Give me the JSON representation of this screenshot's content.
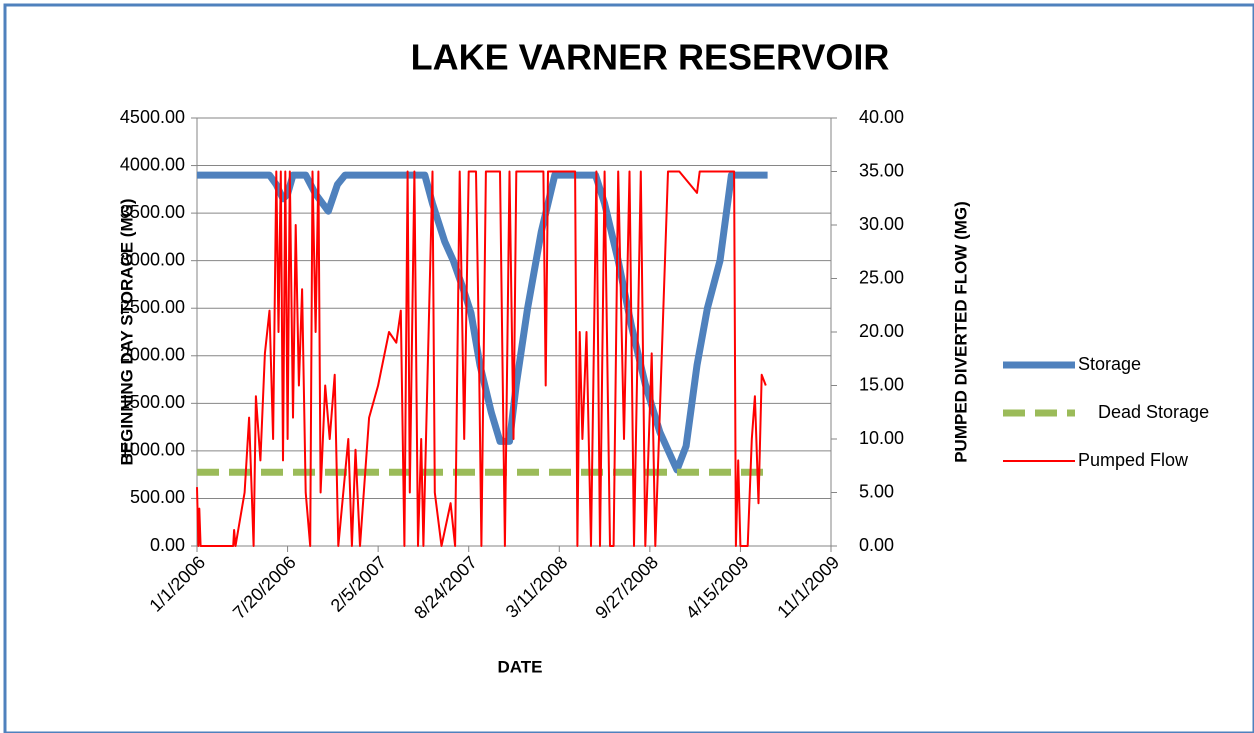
{
  "chart_data": {
    "type": "line",
    "title": "LAKE VARNER RESERVOIR",
    "xlabel": "DATE",
    "ylabel": "BEGINNING DAY STORAGE (MG)",
    "y2label": "PUMPED DIVERTED FLOW (MG)",
    "xlim": [
      "1/1/2006",
      "11/1/2009"
    ],
    "xticks": [
      "1/1/2006",
      "7/20/2006",
      "2/5/2007",
      "8/24/2007",
      "3/11/2008",
      "9/27/2008",
      "4/15/2009",
      "11/1/2009"
    ],
    "ylim": [
      0,
      4500
    ],
    "yticks": [
      {
        "value": 0,
        "label": "0.00"
      },
      {
        "value": 500,
        "label": "500.00"
      },
      {
        "value": 1000,
        "label": "1000.00"
      },
      {
        "value": 1500,
        "label": "1500.00"
      },
      {
        "value": 2000,
        "label": "2000.00"
      },
      {
        "value": 2500,
        "label": "2500.00"
      },
      {
        "value": 3000,
        "label": "3000.00"
      },
      {
        "value": 3500,
        "label": "3500.00"
      },
      {
        "value": 4000,
        "label": "4000.00"
      },
      {
        "value": 4500,
        "label": "4500.00"
      }
    ],
    "y2lim": [
      0,
      40
    ],
    "y2ticks": [
      {
        "value": 0,
        "label": "0.00"
      },
      {
        "value": 5,
        "label": "5.00"
      },
      {
        "value": 10,
        "label": "10.00"
      },
      {
        "value": 15,
        "label": "15.00"
      },
      {
        "value": 20,
        "label": "20.00"
      },
      {
        "value": 25,
        "label": "25.00"
      },
      {
        "value": 30,
        "label": "30.00"
      },
      {
        "value": 35,
        "label": "35.00"
      },
      {
        "value": 40,
        "label": "40.00"
      }
    ],
    "grid": true,
    "legend": "right",
    "series": [
      {
        "name": "Storage",
        "color": "#4f81bd",
        "style": "solid",
        "width": 7,
        "x": [
          "1/1/2006",
          "6/10/2006",
          "6/25/2006",
          "7/10/2006",
          "7/20/2006",
          "8/1/2006",
          "8/29/2006",
          "9/20/2006",
          "10/18/2006",
          "11/7/2006",
          "11/24/2006",
          "5/19/2007",
          "6/5/2007",
          "7/2/2007",
          "7/21/2007",
          "8/12/2007",
          "8/29/2007",
          "9/18/2007",
          "10/13/2007",
          "11/1/2007",
          "11/22/2007",
          "12/7/2007",
          "1/1/2008",
          "1/31/2008",
          "3/1/2008",
          "5/30/2008",
          "6/19/2008",
          "7/19/2008",
          "8/18/2008",
          "9/17/2008",
          "10/19/2008",
          "11/21/2008",
          "11/26/2008",
          "12/16/2008",
          "1/9/2009",
          "2/1/2009",
          "3/1/2009",
          "3/26/2009",
          "6/14/2009"
        ],
        "values": [
          3900,
          3900,
          3800,
          3650,
          3700,
          3900,
          3900,
          3700,
          3520,
          3800,
          3900,
          3900,
          3600,
          3200,
          3000,
          2700,
          2450,
          1900,
          1400,
          1100,
          1100,
          1700,
          2500,
          3300,
          3900,
          3900,
          3600,
          3000,
          2300,
          1700,
          1200,
          850,
          800,
          1050,
          1900,
          2500,
          3000,
          3900,
          3900
        ]
      },
      {
        "name": "Dead Storage",
        "color": "#9bbb59",
        "style": "dashed",
        "width": 7,
        "x": [
          "1/1/2006",
          "6/14/2009"
        ],
        "values": [
          775,
          775
        ]
      },
      {
        "name": "Pumped Flow",
        "color": "#ff0000",
        "style": "solid",
        "width": 2,
        "axis": "y2",
        "x": [
          "1/1/2006",
          "1/4/2006",
          "1/6/2006",
          "1/9/2006",
          "3/22/2006",
          "3/24/2006",
          "3/27/2006",
          "4/16/2006",
          "4/26/2006",
          "5/6/2006",
          "5/11/2006",
          "5/21/2006",
          "5/31/2006",
          "6/10/2006",
          "6/18/2006",
          "6/25/2006",
          "6/30/2006",
          "7/5/2006",
          "7/10/2006",
          "7/15/2006",
          "7/20/2006",
          "7/25/2006",
          "8/1/2006",
          "8/7/2006",
          "8/14/2006",
          "8/21/2006",
          "8/29/2006",
          "9/8/2006",
          "9/13/2006",
          "9/20/2006",
          "9/26/2006",
          "10/1/2006",
          "10/11/2006",
          "10/21/2006",
          "11/1/2006",
          "11/9/2006",
          "12/1/2006",
          "12/9/2006",
          "12/17/2006",
          "12/27/2006",
          "1/16/2007",
          "2/5/2007",
          "3/1/2007",
          "3/17/2007",
          "3/27/2007",
          "4/4/2007",
          "4/11/2007",
          "4/16/2007",
          "4/26/2007",
          "5/4/2007",
          "5/11/2007",
          "5/16/2007",
          "6/5/2007",
          "6/10/2007",
          "6/25/2007",
          "7/15/2007",
          "7/25/2007",
          "8/4/2007",
          "8/14/2007",
          "8/24/2007",
          "9/9/2007",
          "9/15/2007",
          "9/21/2007",
          "10/1/2007",
          "11/1/2007",
          "11/12/2007",
          "11/22/2007",
          "12/1/2007",
          "12/7/2007",
          "1/1/2008",
          "2/5/2008",
          "2/10/2008",
          "2/15/2008",
          "4/15/2008",
          "4/20/2008",
          "4/25/2008",
          "5/1/2008",
          "5/10/2008",
          "5/20/2008",
          "6/1/2008",
          "6/9/2008",
          "6/19/2008",
          "7/1/2008",
          "7/9/2008",
          "7/19/2008",
          "8/1/2008",
          "8/13/2008",
          "8/23/2008",
          "9/7/2008",
          "9/17/2008",
          "10/1/2008",
          "10/9/2008",
          "11/6/2008",
          "12/1/2008",
          "1/9/2009",
          "1/15/2009",
          "4/1/2009",
          "4/5/2009",
          "4/10/2009",
          "4/15/2009",
          "5/1/2009",
          "5/10/2009",
          "5/17/2009",
          "5/25/2009",
          "6/1/2009",
          "6/10/2009"
        ],
        "values": [
          5.5,
          0,
          3.5,
          0,
          0,
          1.5,
          0,
          5,
          12,
          0,
          14,
          8,
          18,
          22,
          10,
          35,
          20,
          35,
          8,
          35,
          10,
          35,
          12,
          30,
          15,
          24,
          5,
          0,
          35,
          20,
          35,
          5,
          15,
          10,
          16,
          0,
          10,
          0,
          9,
          0,
          12,
          15,
          20,
          19,
          22,
          0,
          35,
          5,
          35,
          0,
          10,
          0,
          35,
          5,
          0,
          4,
          0,
          35,
          10,
          35,
          35,
          20,
          0,
          35,
          35,
          0,
          35,
          10,
          35,
          35,
          35,
          15,
          35,
          35,
          0,
          20,
          10,
          20,
          0,
          35,
          0,
          35,
          0,
          0,
          35,
          10,
          35,
          0,
          35,
          0,
          18,
          0,
          35,
          35,
          33,
          35,
          35,
          0,
          8,
          0,
          0,
          10,
          14,
          4,
          16,
          15
        ]
      }
    ]
  }
}
